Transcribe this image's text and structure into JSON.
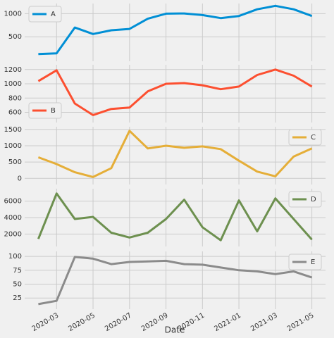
{
  "chart_data": {
    "type": "line",
    "xlabel": "Date",
    "x": [
      "2020-02",
      "2020-03",
      "2020-04",
      "2020-05",
      "2020-06",
      "2020-07",
      "2020-08",
      "2020-09",
      "2020-10",
      "2020-11",
      "2020-12",
      "2021-01",
      "2021-02",
      "2021-03",
      "2021-04",
      "2021-05"
    ],
    "xticks": [
      "2020-03",
      "2020-05",
      "2020-07",
      "2020-09",
      "2020-11",
      "2021-01",
      "2021-03",
      "2021-05"
    ],
    "grid": true,
    "panels": [
      {
        "ylim": [
          -30,
          1220
        ],
        "yticks": [
          500,
          1000
        ],
        "legend": "upper left",
        "series": [
          {
            "name": "A",
            "color": "#008fd5",
            "values": [
              125,
              140,
              700,
              560,
              640,
              670,
              890,
              1000,
              1005,
              970,
              905,
              950,
              1095,
              1170,
              1095,
              950
            ]
          }
        ]
      },
      {
        "ylim": [
          457,
          1267
        ],
        "yticks": [
          600,
          800,
          1000,
          1200
        ],
        "legend": "lower left",
        "series": [
          {
            "name": "B",
            "color": "#fc4f30",
            "values": [
              1038,
              1190,
              724,
              562,
              648,
              667,
              895,
              1000,
              1010,
              980,
              924,
              962,
              1124,
              1200,
              1114,
              962
            ]
          }
        ]
      },
      {
        "ylim": [
          -188,
          1583
        ],
        "yticks": [
          0,
          500,
          1000,
          1500
        ],
        "legend": "upper right",
        "series": [
          {
            "name": "C",
            "color": "#e5ae38",
            "values": [
              645,
              438,
              188,
              42,
              313,
              1458,
              917,
              1000,
              938,
              980,
              896,
              542,
              208,
              63,
              667,
              917
            ]
          }
        ]
      },
      {
        "ylim": [
          500,
          7500
        ],
        "yticks": [
          2000,
          4000,
          6000
        ],
        "legend": "upper right",
        "series": [
          {
            "name": "D",
            "color": "#6d904f",
            "values": [
              1417,
              6917,
              3833,
              4083,
              2167,
              1583,
              2167,
              3833,
              6167,
              2833,
              1250,
              6083,
              2333,
              6333,
              3833,
              1333
            ]
          }
        ]
      },
      {
        "ylim": [
          5,
          109
        ],
        "yticks": [
          25,
          50,
          75,
          100
        ],
        "legend": "upper right",
        "series": [
          {
            "name": "E",
            "color": "#8b8b8b",
            "values": [
              14,
              20,
              99,
              96,
              86,
              90,
              91,
              92,
              86,
              85,
              80,
              75,
              73,
              68,
              73,
              62
            ]
          }
        ]
      }
    ]
  }
}
